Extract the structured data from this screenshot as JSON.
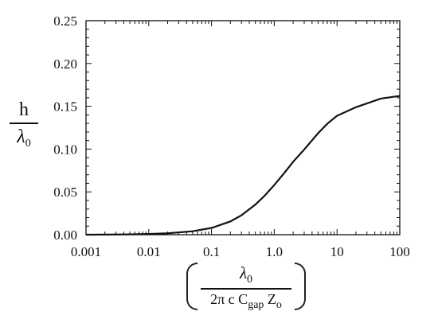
{
  "chart_data": {
    "type": "line",
    "xscale": "log",
    "xlim": [
      0.001,
      100
    ],
    "ylim": [
      0,
      0.25
    ],
    "x_ticks": [
      0.001,
      0.01,
      0.1,
      1.0,
      10,
      100
    ],
    "x_tick_labels": [
      "0.001",
      "0.01",
      "0.1",
      "1.0",
      "10",
      "100"
    ],
    "y_ticks": [
      0,
      0.05,
      0.1,
      0.15,
      0.2,
      0.25
    ],
    "y_tick_labels": [
      "0.00",
      "0.05",
      "0.10",
      "0.15",
      "0.20",
      "0.25"
    ],
    "ylabel": {
      "numerator": "h",
      "denominator": "λ",
      "denominator_sub": "0"
    },
    "xlabel": {
      "numerator": "λ",
      "numerator_sub": "0",
      "denominator_parts": [
        "2π c C",
        "gap",
        " Z",
        "o"
      ]
    },
    "grid": false,
    "legend": "none",
    "series": [
      {
        "x": [
          0.001,
          0.002,
          0.005,
          0.01,
          0.02,
          0.05,
          0.1,
          0.2,
          0.3,
          0.5,
          0.7,
          1.0,
          1.5,
          2,
          3,
          5,
          7,
          10,
          20,
          50,
          100
        ],
        "values": [
          0.0,
          0.0001,
          0.0004,
          0.0008,
          0.0016,
          0.004,
          0.0079,
          0.0155,
          0.0227,
          0.0352,
          0.0454,
          0.058,
          0.0736,
          0.0852,
          0.0995,
          0.1186,
          0.1296,
          0.1389,
          0.1489,
          0.159,
          0.1621
        ]
      }
    ],
    "line_color": "#111111"
  }
}
